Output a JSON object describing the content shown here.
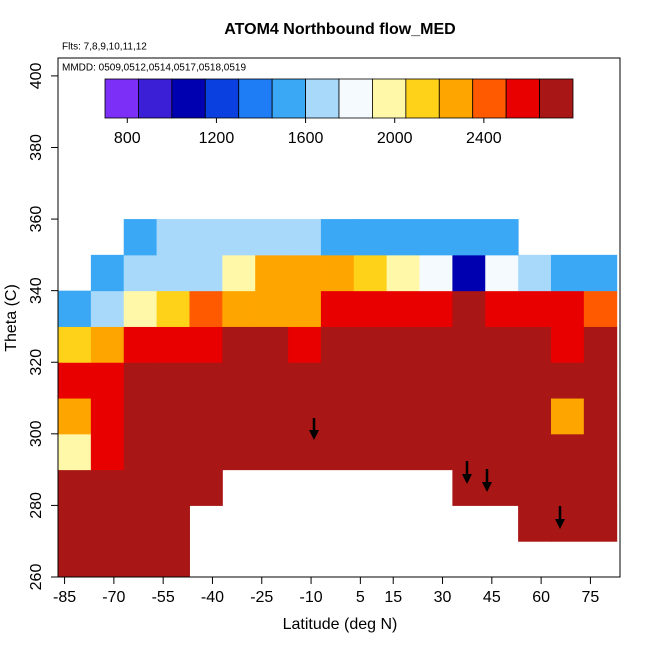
{
  "chart_data": {
    "type": "heatmap",
    "title": "ATOM4 Northbound flow_MED",
    "annotations": [
      "Flts: 7,8,9,10,11,12",
      "MMDD: 0509,0512,0514,0517,0518,0519"
    ],
    "x_label": "Latitude (deg N)",
    "y_label": "Theta (C)",
    "xlim": [
      -87,
      84
    ],
    "ylim": [
      260,
      405
    ],
    "xticks": [
      -85,
      -70,
      -55,
      -40,
      -25,
      -10,
      5,
      15,
      30,
      45,
      60,
      75
    ],
    "yticks": [
      260,
      280,
      300,
      320,
      340,
      360,
      380,
      400
    ],
    "x": [
      -82,
      -72,
      -62,
      -52,
      -42,
      -32,
      -22,
      -12,
      -2,
      8,
      18,
      28,
      38,
      48,
      58,
      68,
      78
    ],
    "y": [
      265,
      275,
      285,
      295,
      305,
      315,
      325,
      335,
      345,
      355
    ],
    "values": [
      [
        2700,
        2700,
        2700,
        2700,
        null,
        null,
        null,
        null,
        null,
        null,
        null,
        null,
        null,
        null,
        null,
        null,
        null
      ],
      [
        2700,
        2700,
        2700,
        2700,
        null,
        null,
        null,
        null,
        null,
        null,
        null,
        null,
        null,
        null,
        2700,
        2700,
        2700
      ],
      [
        2700,
        2700,
        2700,
        2700,
        2700,
        null,
        null,
        null,
        null,
        null,
        null,
        null,
        2700,
        2700,
        2700,
        2700,
        2700
      ],
      [
        1900,
        2500,
        2700,
        2700,
        2700,
        2700,
        2700,
        2700,
        2700,
        2700,
        2700,
        2700,
        2700,
        2700,
        2700,
        2700,
        2700
      ],
      [
        2300,
        2600,
        2700,
        2700,
        2700,
        2700,
        2700,
        2700,
        2700,
        2700,
        2700,
        2700,
        2700,
        2700,
        2700,
        2200,
        2700
      ],
      [
        2500,
        2600,
        2700,
        2700,
        2700,
        2700,
        2700,
        2700,
        2700,
        2700,
        2700,
        2700,
        2700,
        2700,
        2700,
        2700,
        2700
      ],
      [
        2100,
        2300,
        2500,
        2600,
        2600,
        2700,
        2700,
        2600,
        2650,
        2700,
        2700,
        2700,
        2700,
        2700,
        2700,
        2600,
        2700
      ],
      [
        1500,
        1600,
        1900,
        2100,
        2400,
        2300,
        2300,
        2200,
        2500,
        2600,
        2600,
        2600,
        2700,
        2600,
        2600,
        2500,
        2400
      ],
      [
        null,
        1500,
        1700,
        1600,
        1700,
        1900,
        2300,
        2200,
        2200,
        2100,
        2000,
        1800,
        1100,
        1800,
        1600,
        1500,
        1500
      ],
      [
        null,
        null,
        1500,
        1600,
        1600,
        1600,
        1600,
        1600,
        1500,
        1500,
        1500,
        1500,
        1500,
        1500,
        null,
        null,
        null
      ]
    ],
    "colorbar": {
      "lim": [
        700,
        2800
      ],
      "ticks": [
        800,
        1200,
        1600,
        2000,
        2400
      ],
      "colors": [
        "#7b2ff7",
        "#3a1fd6",
        "#0000b0",
        "#0a3fe0",
        "#1e7cf5",
        "#3aa8f5",
        "#a8d8fa",
        "#f5fafe",
        "#fff8a8",
        "#ffd21a",
        "#ffa500",
        "#ff5a00",
        "#e80000",
        "#a81616"
      ]
    }
  }
}
